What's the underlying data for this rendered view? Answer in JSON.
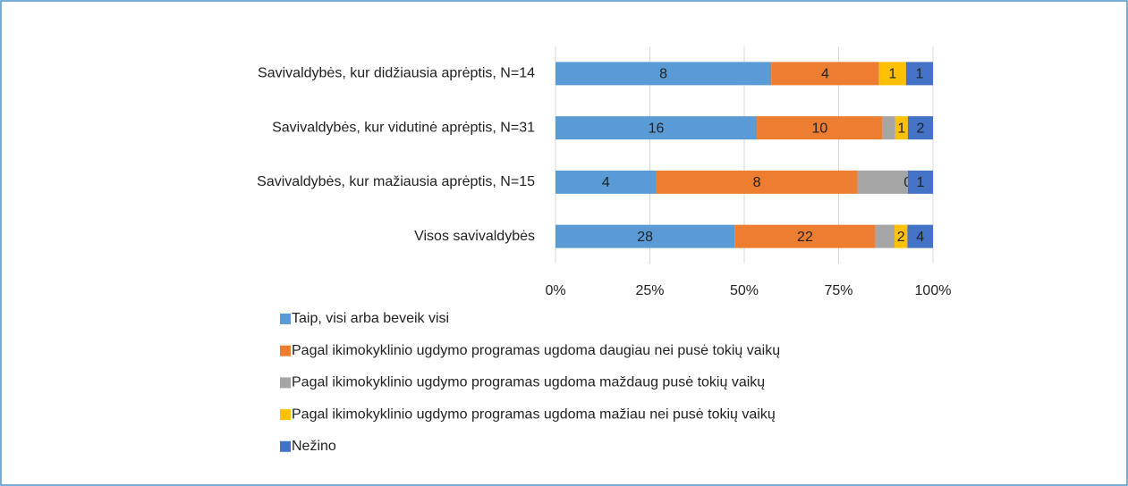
{
  "chart_data": {
    "type": "bar",
    "orientation": "horizontal",
    "stacking": "percent",
    "categories": [
      "Savivaldybės, kur didžiausia aprėptis, N=14",
      "Savivaldybės, kur vidutinė aprėptis, N=31",
      "Savivaldybės, kur mažiausia aprėptis, N=15",
      "Visos savivaldybės"
    ],
    "series": [
      {
        "name": "Taip, visi arba beveik visi",
        "color": "#5b9bd5",
        "values": [
          8,
          16,
          4,
          28
        ]
      },
      {
        "name": "Pagal ikimokyklinio ugdymo programas ugdoma daugiau nei pusė tokių vaikų",
        "color": "#ed7d31",
        "values": [
          4,
          10,
          8,
          22
        ]
      },
      {
        "name": "Pagal ikimokyklinio ugdymo programas ugdoma maždaug pusė tokių vaikų",
        "color": "#a5a5a5",
        "values": [
          0,
          1,
          2,
          3
        ],
        "labels": false
      },
      {
        "name": "Pagal ikimokyklinio ugdymo programas ugdoma mažiau nei pusė tokių vaikų",
        "color": "#ffc000",
        "values": [
          1,
          1,
          0,
          2
        ]
      },
      {
        "name": "Nežino",
        "color": "#4472c4",
        "values": [
          1,
          2,
          1,
          4
        ]
      }
    ],
    "xlim": [
      0,
      100
    ],
    "xticks": [
      {
        "value": 0,
        "label": "0%"
      },
      {
        "value": 25,
        "label": "25%"
      },
      {
        "value": 50,
        "label": "50%"
      },
      {
        "value": 75,
        "label": "75%"
      },
      {
        "value": 100,
        "label": "100%"
      }
    ],
    "grid": true
  }
}
